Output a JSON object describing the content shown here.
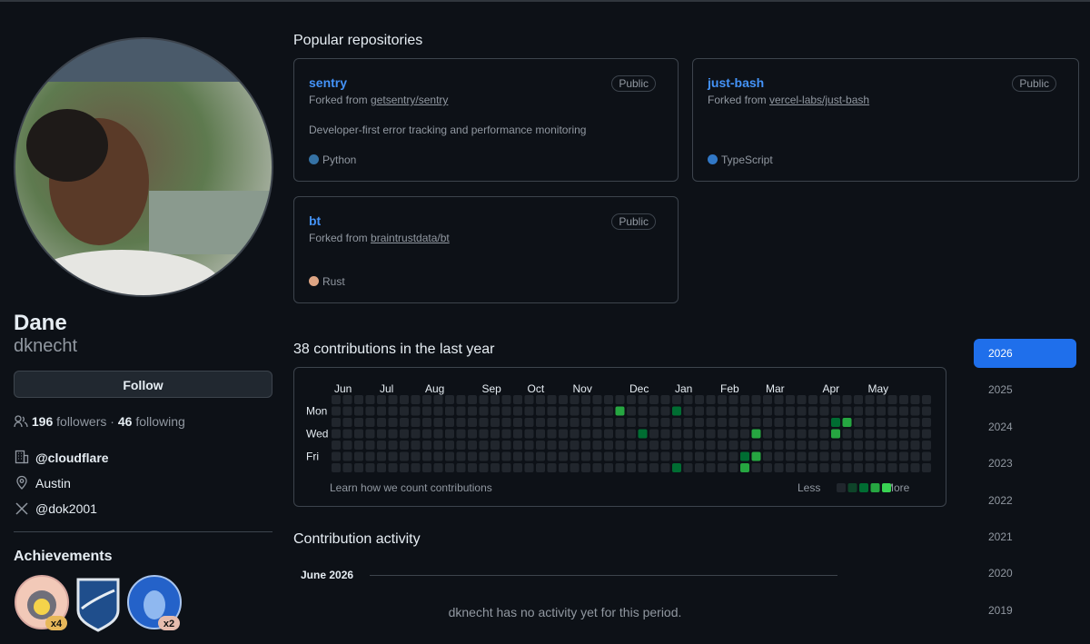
{
  "profile": {
    "name": "Dane",
    "login": "dknecht",
    "follow": "Follow",
    "followers": "196",
    "followers_label": "followers",
    "separator": "·",
    "following": "46",
    "following_label": "following",
    "company": "@cloudflare",
    "location": "Austin",
    "twitter": "@dok2001"
  },
  "achievements": {
    "title": "Achievements",
    "counts": [
      "x4",
      "x2"
    ]
  },
  "popular": {
    "title": "Popular repositories",
    "fork_label": "Forked from",
    "repos": [
      {
        "name": "sentry",
        "visibility": "Public",
        "forked_from": "getsentry/sentry",
        "description": "Developer-first error tracking and performance monitoring",
        "language": "Python",
        "language_color": "#3572a5"
      },
      {
        "name": "just-bash",
        "visibility": "Public",
        "forked_from": "vercel-labs/just-bash",
        "description": null,
        "language": "TypeScript",
        "language_color": "#3178c6"
      },
      {
        "name": "bt",
        "visibility": "Public",
        "forked_from": "braintrustdata/bt",
        "description": null,
        "language": "Rust",
        "language_color": "#dea584"
      }
    ]
  },
  "contributions": {
    "title": "38 contributions in the last year",
    "months": [
      "Jun",
      "Jul",
      "Aug",
      "Sep",
      "Oct",
      "Nov",
      "Dec",
      "Jan",
      "Feb",
      "Mar",
      "Apr",
      "May"
    ],
    "day_labels": [
      "Mon",
      "Wed",
      "Fri"
    ],
    "level_colors": [
      "#21262d",
      "#0e4429",
      "#006d32",
      "#26a641",
      "#39d353"
    ],
    "grid": [
      [
        0,
        0,
        0,
        0,
        0,
        0,
        0,
        0,
        0,
        0,
        0,
        0,
        0,
        0,
        0,
        0,
        0,
        0,
        0,
        0,
        0,
        0,
        0,
        0,
        0,
        0,
        0,
        0,
        0,
        0,
        0,
        0,
        0,
        0,
        0,
        0,
        0,
        0,
        0,
        0,
        0,
        0,
        0,
        0,
        0,
        0,
        0,
        0,
        0,
        0,
        0,
        0,
        0
      ],
      [
        0,
        0,
        0,
        0,
        0,
        0,
        0,
        0,
        0,
        0,
        0,
        0,
        0,
        0,
        0,
        0,
        0,
        0,
        0,
        0,
        0,
        0,
        0,
        0,
        0,
        3,
        0,
        0,
        0,
        0,
        2,
        0,
        0,
        0,
        0,
        0,
        0,
        0,
        0,
        0,
        0,
        0,
        0,
        0,
        0,
        0,
        0,
        0,
        0,
        0,
        0,
        0,
        0
      ],
      [
        0,
        0,
        0,
        0,
        0,
        0,
        0,
        0,
        0,
        0,
        0,
        0,
        0,
        0,
        0,
        0,
        0,
        0,
        0,
        0,
        0,
        0,
        0,
        0,
        0,
        0,
        0,
        0,
        0,
        0,
        0,
        0,
        0,
        0,
        0,
        0,
        0,
        0,
        0,
        0,
        0,
        0,
        0,
        0,
        2,
        3,
        0,
        0,
        0,
        0,
        0,
        0,
        0
      ],
      [
        0,
        0,
        0,
        0,
        0,
        0,
        0,
        0,
        0,
        0,
        0,
        0,
        0,
        0,
        0,
        0,
        0,
        0,
        0,
        0,
        0,
        0,
        0,
        0,
        0,
        0,
        0,
        2,
        0,
        0,
        0,
        0,
        0,
        0,
        0,
        0,
        0,
        3,
        0,
        0,
        0,
        0,
        0,
        0,
        3,
        0,
        0,
        0,
        0,
        0,
        0,
        0,
        0
      ],
      [
        0,
        0,
        0,
        0,
        0,
        0,
        0,
        0,
        0,
        0,
        0,
        0,
        0,
        0,
        0,
        0,
        0,
        0,
        0,
        0,
        0,
        0,
        0,
        0,
        0,
        0,
        0,
        0,
        0,
        0,
        0,
        0,
        0,
        0,
        0,
        0,
        0,
        0,
        0,
        0,
        0,
        0,
        0,
        0,
        0,
        0,
        0,
        0,
        0,
        0,
        0,
        0,
        0
      ],
      [
        0,
        0,
        0,
        0,
        0,
        0,
        0,
        0,
        0,
        0,
        0,
        0,
        0,
        0,
        0,
        0,
        0,
        0,
        0,
        0,
        0,
        0,
        0,
        0,
        0,
        0,
        0,
        0,
        0,
        0,
        0,
        0,
        0,
        0,
        0,
        0,
        2,
        3,
        0,
        0,
        0,
        0,
        0,
        0,
        0,
        0,
        0,
        0,
        0,
        0,
        0,
        0,
        0
      ],
      [
        0,
        0,
        0,
        0,
        0,
        0,
        0,
        0,
        0,
        0,
        0,
        0,
        0,
        0,
        0,
        0,
        0,
        0,
        0,
        0,
        0,
        0,
        0,
        0,
        0,
        0,
        0,
        0,
        0,
        0,
        2,
        0,
        0,
        0,
        0,
        0,
        3,
        0,
        0,
        0,
        0,
        0,
        0,
        0,
        0,
        0,
        0,
        0,
        0,
        0,
        0,
        0,
        0
      ]
    ],
    "learn": "Learn how we count contributions",
    "less": "Less",
    "more": "More"
  },
  "activity": {
    "title": "Contribution activity",
    "month": "June 2026",
    "empty": "dknecht has no activity yet for this period."
  },
  "years": [
    "2026",
    "2025",
    "2024",
    "2023",
    "2022",
    "2021",
    "2020",
    "2019"
  ]
}
